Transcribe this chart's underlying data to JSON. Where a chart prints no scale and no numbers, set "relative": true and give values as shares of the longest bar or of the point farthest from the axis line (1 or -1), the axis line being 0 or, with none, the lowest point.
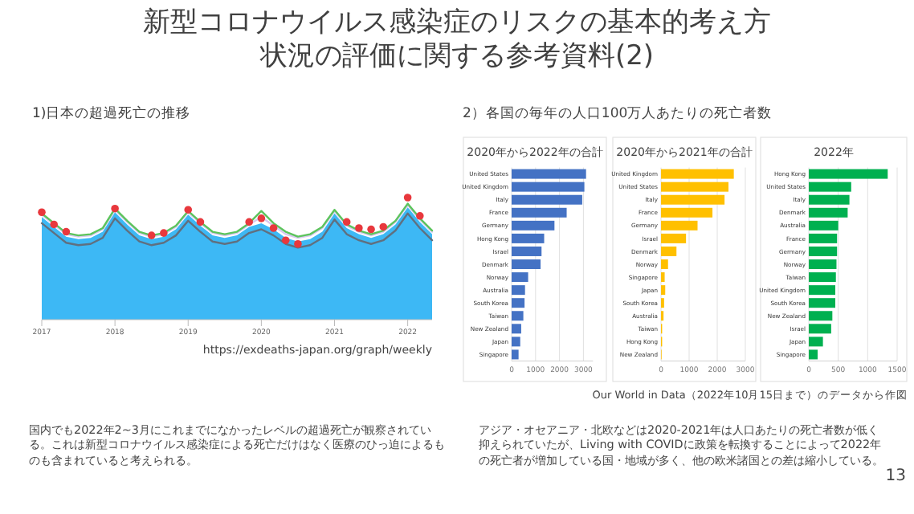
{
  "chart_data": [
    {
      "type": "other",
      "title": "新型コロナウイルス感染症のリスクの基本的考え方",
      "subtitle": "状況の評価に関する参考資料(2)",
      "annotations": [
        "2）各国の毎年の人口100万人あたりの死亡者数",
        "Our World in Data（2022年10月15日まで）のデータから作図",
        "国内でも2022年2~3月にこれまでになかったレベルの超過死亡が観察されている。これは新型コロナウイルス感染症による死亡だけはなく医療のひっ迫によるものも含まれていると考えられる。",
        "アジア・オセアニア・北欧などは2020-2021年は人口あたりの死亡者数が低く抑えられていたが、Living with COVIDに政策を転換することによって2022年の死亡者が増加している国・地域が多く、他の欧米諸国との差は縮小している。",
        "13"
      ]
    },
    {
      "type": "area",
      "title": "1)日本の超過死亡の推移",
      "relative": true,
      "annotations": [
        "https://exdeaths-japan.org/graph/weekly"
      ],
      "x": [
        "2017-01",
        "2017-03",
        "2017-05",
        "2017-07",
        "2017-09",
        "2017-11",
        "2018-01",
        "2018-03",
        "2018-05",
        "2018-07",
        "2018-09",
        "2018-11",
        "2019-01",
        "2019-03",
        "2019-05",
        "2019-07",
        "2019-09",
        "2019-11",
        "2020-01",
        "2020-03",
        "2020-05",
        "2020-07",
        "2020-09",
        "2020-11",
        "2021-01",
        "2021-03",
        "2021-05",
        "2021-07",
        "2021-09",
        "2021-11",
        "2022-01",
        "2022-03",
        "2022-05"
      ],
      "xlim": [
        "2017-01",
        "2022-05"
      ],
      "xticks": [
        {
          "value": "2017-01",
          "label": "2017"
        },
        {
          "value": "2018-01",
          "label": "2018"
        },
        {
          "value": "2019-01",
          "label": "2019"
        },
        {
          "value": "2020-01",
          "label": "2020"
        },
        {
          "value": "2021-01",
          "label": "2021"
        },
        {
          "value": "2022-01",
          "label": "2022"
        }
      ],
      "series": [
        {
          "type": "area",
          "color": "#3db8f5",
          "values": [
            0.84,
            0.76,
            0.68,
            0.66,
            0.67,
            0.72,
            0.88,
            0.78,
            0.69,
            0.66,
            0.68,
            0.74,
            0.86,
            0.77,
            0.69,
            0.67,
            0.69,
            0.76,
            0.79,
            0.74,
            0.67,
            0.64,
            0.66,
            0.72,
            0.87,
            0.75,
            0.7,
            0.67,
            0.7,
            0.78,
            0.92,
            0.8,
            0.7
          ]
        },
        {
          "type": "line",
          "color": "#d9c8f0",
          "values": [
            0.86,
            0.78,
            0.7,
            0.68,
            0.69,
            0.74,
            0.9,
            0.8,
            0.71,
            0.68,
            0.7,
            0.76,
            0.88,
            0.79,
            0.71,
            0.69,
            0.71,
            0.78,
            0.84,
            0.77,
            0.7,
            0.67,
            0.69,
            0.75,
            0.89,
            0.77,
            0.72,
            0.69,
            0.72,
            0.8,
            0.94,
            0.82,
            0.72
          ]
        },
        {
          "type": "line",
          "color": "#5cc45c",
          "values": [
            0.87,
            0.79,
            0.71,
            0.69,
            0.7,
            0.75,
            0.91,
            0.81,
            0.72,
            0.69,
            0.71,
            0.77,
            0.89,
            0.8,
            0.72,
            0.7,
            0.72,
            0.79,
            0.89,
            0.79,
            0.72,
            0.68,
            0.7,
            0.76,
            0.9,
            0.78,
            0.73,
            0.7,
            0.73,
            0.81,
            0.95,
            0.83,
            0.73
          ]
        },
        {
          "type": "line",
          "color": "#607080",
          "values": [
            0.79,
            0.71,
            0.63,
            0.61,
            0.62,
            0.67,
            0.83,
            0.73,
            0.64,
            0.61,
            0.63,
            0.69,
            0.81,
            0.72,
            0.64,
            0.62,
            0.64,
            0.71,
            0.74,
            0.69,
            0.62,
            0.59,
            0.61,
            0.67,
            0.82,
            0.7,
            0.65,
            0.62,
            0.65,
            0.73,
            0.87,
            0.75,
            0.65
          ]
        },
        {
          "type": "scatter",
          "color": "#e8383d",
          "marker": "circle",
          "values": [
            0.88,
            0.78,
            0.72,
            null,
            null,
            null,
            0.91,
            null,
            null,
            0.69,
            0.71,
            null,
            0.9,
            0.8,
            null,
            null,
            null,
            0.8,
            0.83,
            0.75,
            0.65,
            0.62,
            null,
            null,
            null,
            0.8,
            0.75,
            0.74,
            0.76,
            null,
            1.0,
            0.85,
            null
          ]
        }
      ]
    },
    {
      "type": "bar",
      "orientation": "horizontal",
      "title": "2020年から2022年の合計",
      "grid": "x",
      "xlim": [
        0,
        3400
      ],
      "xticks": [
        0,
        1000,
        2000,
        3000
      ],
      "categories": [
        "United States",
        "United Kingdom",
        "Italy",
        "France",
        "Germany",
        "Hong Kong",
        "Israel",
        "Denmark",
        "Norway",
        "Australia",
        "South Korea",
        "Taiwan",
        "New Zealand",
        "Japan",
        "Singapore"
      ],
      "series": [
        {
          "color": "#4472c4",
          "values": [
            3110,
            3040,
            2950,
            2300,
            1790,
            1360,
            1250,
            1210,
            690,
            560,
            540,
            490,
            400,
            360,
            290
          ]
        }
      ]
    },
    {
      "type": "bar",
      "orientation": "horizontal",
      "title": "2020年から2021年の合計",
      "grid": "x",
      "xlim": [
        0,
        3000
      ],
      "xticks": [
        0,
        1000,
        2000,
        3000
      ],
      "categories": [
        "United Kingdom",
        "United States",
        "Italy",
        "France",
        "Germany",
        "Israel",
        "Denmark",
        "Norway",
        "Singapore",
        "Japan",
        "South Korea",
        "Australia",
        "Taiwan",
        "Hong Kong",
        "New Zealand"
      ],
      "series": [
        {
          "color": "#ffc000",
          "values": [
            2590,
            2400,
            2260,
            1830,
            1300,
            890,
            550,
            250,
            130,
            150,
            110,
            90,
            40,
            40,
            20
          ]
        }
      ]
    },
    {
      "type": "bar",
      "orientation": "horizontal",
      "title": "2022年",
      "grid": "x",
      "xlim": [
        0,
        1500
      ],
      "xticks": [
        0,
        500,
        1000,
        1500
      ],
      "categories": [
        "Hong Kong",
        "United States",
        "Italy",
        "Denmark",
        "Australia",
        "France",
        "Germany",
        "Norway",
        "Taiwan",
        "United Kingdom",
        "South Korea",
        "New Zealand",
        "Israel",
        "Japan",
        "Singapore"
      ],
      "series": [
        {
          "color": "#00b050",
          "values": [
            1340,
            720,
            690,
            660,
            500,
            480,
            480,
            470,
            460,
            450,
            450,
            400,
            380,
            240,
            150
          ]
        }
      ]
    }
  ]
}
